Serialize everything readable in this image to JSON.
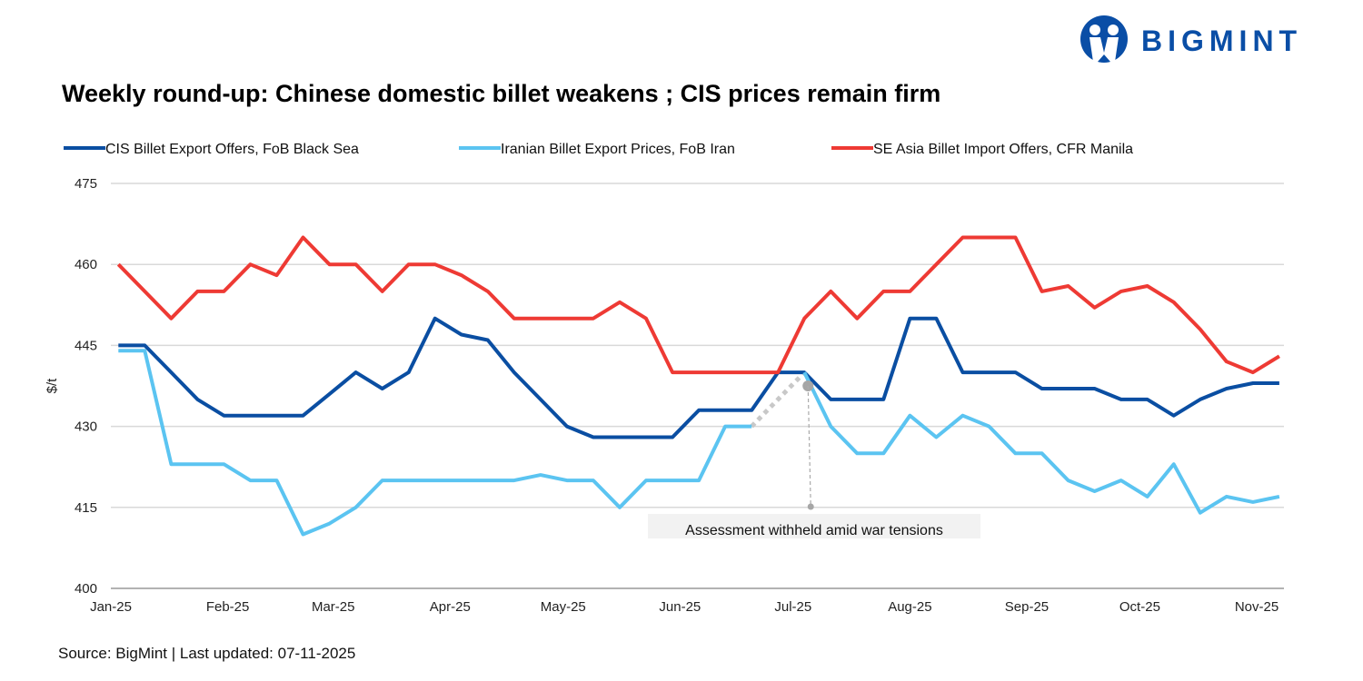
{
  "logo": {
    "text": "BIGMINT",
    "color": "#0a4ea6"
  },
  "title": "Weekly round-up: Chinese domestic billet weakens ; CIS prices remain firm",
  "source": "Source: BigMint | Last updated: 07-11-2025",
  "chart_data": {
    "type": "line",
    "title": "Weekly round-up: Chinese domestic billet weakens ; CIS prices remain firm",
    "ylabel": "$/t",
    "xlabel": "",
    "ylim": [
      400,
      475
    ],
    "yticks": [
      400,
      415,
      430,
      445,
      460,
      475
    ],
    "xticks": [
      "Jan-25",
      "Feb-25",
      "Mar-25",
      "Apr-25",
      "May-25",
      "Jun-25",
      "Jul-25",
      "Aug-25",
      "Sep-25",
      "Oct-25",
      "Nov-25"
    ],
    "xtick_dates": [
      "2025-01-01",
      "2025-02-01",
      "2025-03-01",
      "2025-04-01",
      "2025-05-01",
      "2025-06-01",
      "2025-07-01",
      "2025-08-01",
      "2025-09-01",
      "2025-10-01",
      "2025-11-01"
    ],
    "grid": "horizontal",
    "legend_position": "top",
    "x": [
      "2025-01-03",
      "2025-01-10",
      "2025-01-17",
      "2025-01-24",
      "2025-01-31",
      "2025-02-07",
      "2025-02-14",
      "2025-02-21",
      "2025-02-28",
      "2025-03-07",
      "2025-03-14",
      "2025-03-21",
      "2025-03-28",
      "2025-04-04",
      "2025-04-11",
      "2025-04-18",
      "2025-04-25",
      "2025-05-02",
      "2025-05-09",
      "2025-05-16",
      "2025-05-23",
      "2025-05-30",
      "2025-06-06",
      "2025-06-13",
      "2025-06-20",
      "2025-06-27",
      "2025-07-04",
      "2025-07-11",
      "2025-07-18",
      "2025-07-25",
      "2025-08-01",
      "2025-08-08",
      "2025-08-15",
      "2025-08-22",
      "2025-08-29",
      "2025-09-05",
      "2025-09-12",
      "2025-09-19",
      "2025-09-26",
      "2025-10-03",
      "2025-10-10",
      "2025-10-17",
      "2025-10-24",
      "2025-10-31",
      "2025-11-07"
    ],
    "series": [
      {
        "name": "CIS Billet Export Offers, FoB Black Sea",
        "color": "#0a4ea2",
        "values": [
          445,
          445,
          440,
          435,
          432,
          432,
          432,
          432,
          436,
          440,
          437,
          440,
          450,
          447,
          446,
          440,
          435,
          430,
          428,
          428,
          428,
          428,
          433,
          433,
          433,
          440,
          440,
          435,
          435,
          435,
          450,
          450,
          440,
          440,
          440,
          437,
          437,
          437,
          435,
          435,
          432,
          435,
          437,
          438,
          438
        ]
      },
      {
        "name": "Iranian Billet Export Prices, FoB Iran",
        "color": "#5bc4f1",
        "values": [
          444,
          444,
          423,
          423,
          423,
          420,
          420,
          410,
          412,
          415,
          420,
          420,
          420,
          420,
          420,
          420,
          421,
          420,
          420,
          415,
          420,
          420,
          420,
          430,
          430,
          null,
          440,
          430,
          425,
          425,
          432,
          428,
          432,
          430,
          425,
          425,
          420,
          418,
          420,
          417,
          423,
          414,
          417,
          416,
          417
        ]
      },
      {
        "name": "SE Asia Billet Import Offers, CFR Manila",
        "color": "#ee3a34",
        "values": [
          460,
          455,
          450,
          455,
          455,
          460,
          458,
          465,
          460,
          460,
          455,
          460,
          460,
          458,
          455,
          450,
          450,
          450,
          450,
          453,
          450,
          440,
          440,
          440,
          440,
          440,
          450,
          455,
          450,
          455,
          455,
          460,
          465,
          465,
          465,
          455,
          456,
          452,
          455,
          456,
          453,
          448,
          442,
          440,
          443
        ]
      }
    ],
    "annotations": [
      {
        "text": "Assessment withheld amid  war tensions",
        "date": "2025-06-27",
        "series": "Iranian Billet Export Prices, FoB Iran"
      }
    ]
  }
}
